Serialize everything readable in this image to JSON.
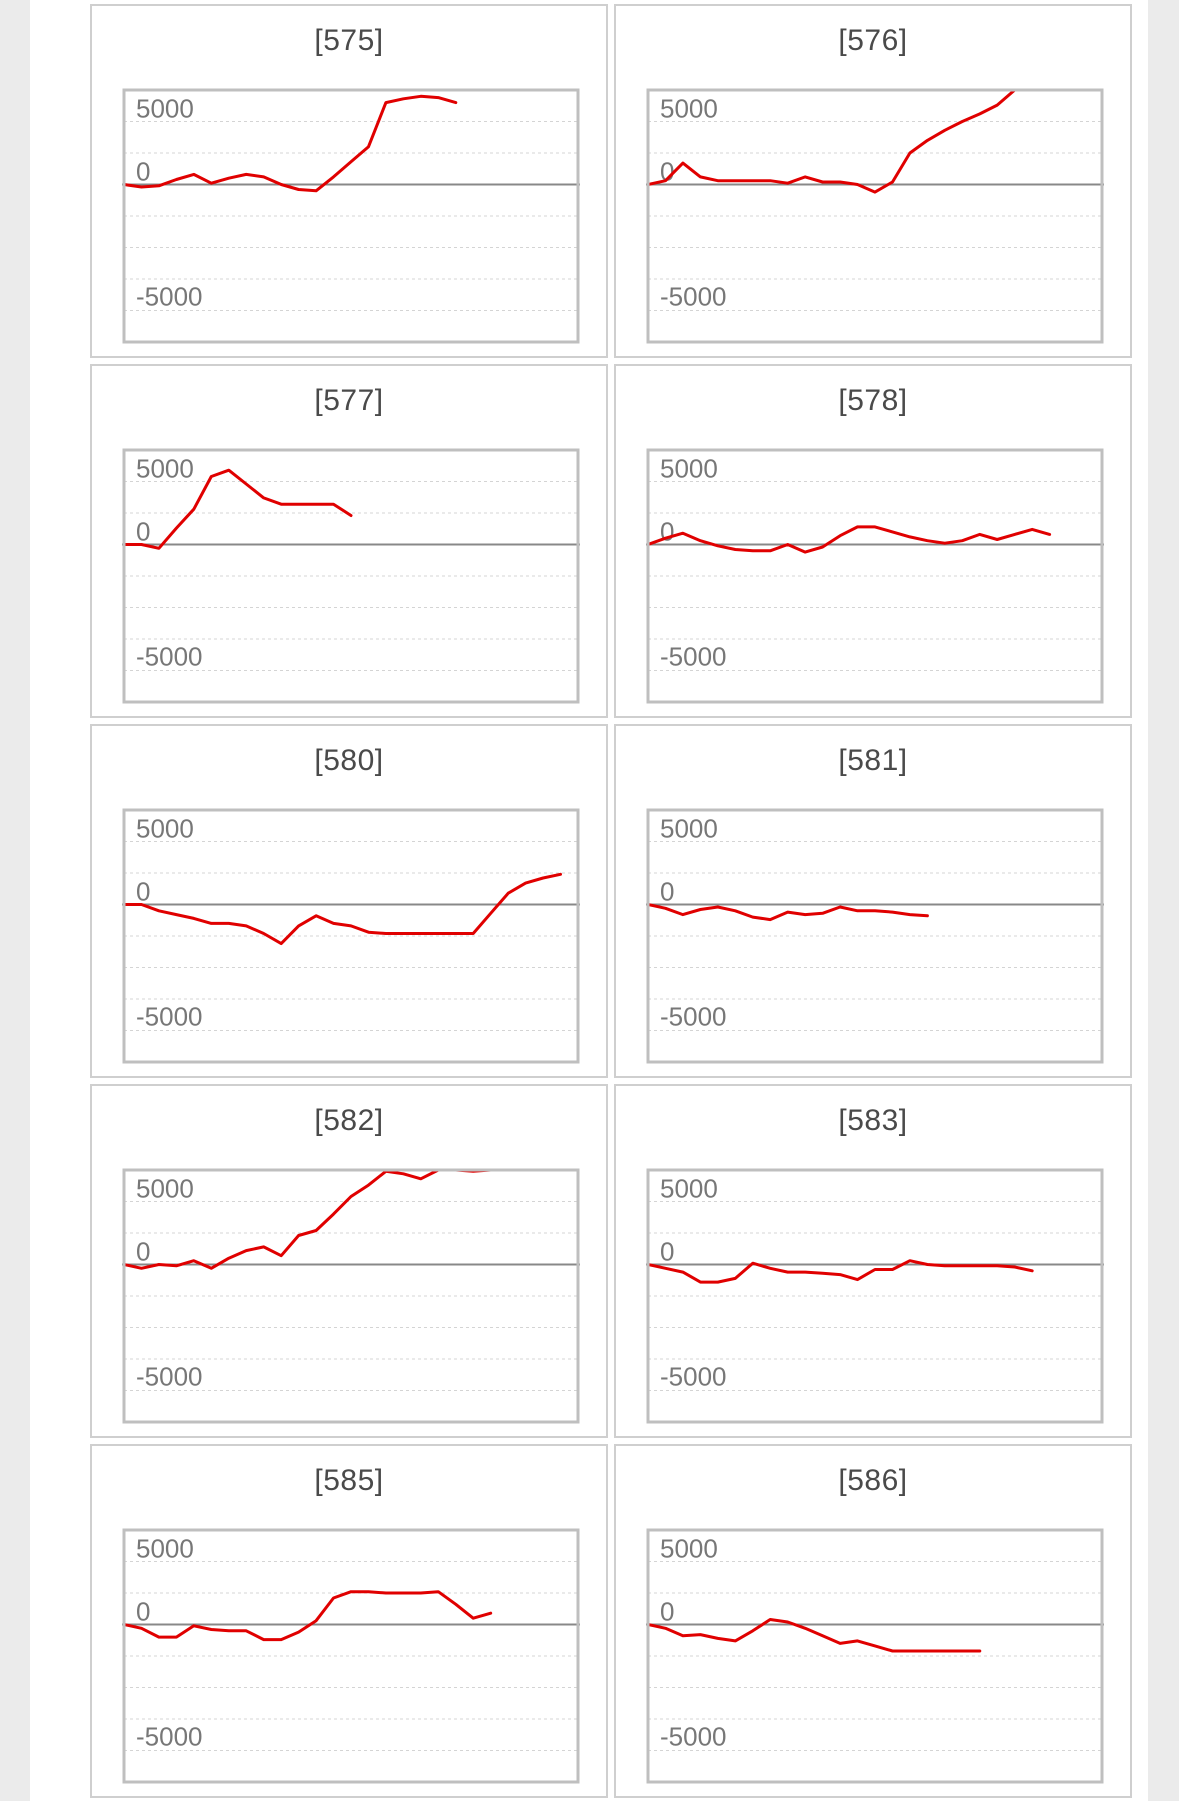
{
  "chart_data": [
    {
      "type": "line",
      "title": "[575]",
      "y_tick_labels": [
        "5000",
        "0",
        "-5000"
      ],
      "x": [
        0,
        1,
        2,
        3,
        4,
        5,
        6,
        7,
        8,
        9,
        10,
        11,
        12,
        13,
        14,
        15,
        16,
        17,
        18,
        19
      ],
      "values": [
        0,
        -200,
        -100,
        400,
        800,
        100,
        500,
        800,
        600,
        0,
        -400,
        -500,
        600,
        1800,
        3000,
        6500,
        6800,
        7000,
        6900,
        6500
      ]
    },
    {
      "type": "line",
      "title": "[576]",
      "y_tick_labels": [
        "5000",
        "0",
        "-5000"
      ],
      "x": [
        0,
        1,
        2,
        3,
        4,
        5,
        6,
        7,
        8,
        9,
        10,
        11,
        12,
        13,
        14,
        15,
        16,
        17,
        18,
        19,
        20,
        21,
        22,
        23,
        24,
        25,
        26,
        27
      ],
      "values": [
        0,
        300,
        1700,
        600,
        300,
        300,
        300,
        300,
        100,
        600,
        200,
        200,
        0,
        -600,
        200,
        2500,
        3500,
        4300,
        5000,
        5600,
        6300,
        7500,
        7500,
        7500,
        7500,
        7500,
        7500,
        7500
      ]
    },
    {
      "type": "line",
      "title": "[577]",
      "y_tick_labels": [
        "5000",
        "0",
        "-5000"
      ],
      "x": [
        0,
        1,
        2,
        3,
        4,
        5,
        6,
        7,
        8,
        9,
        10,
        11,
        12,
        13
      ],
      "values": [
        0,
        0,
        -300,
        1300,
        2800,
        5400,
        5900,
        4800,
        3700,
        3200,
        3200,
        3200,
        3200,
        2300
      ]
    },
    {
      "type": "line",
      "title": "[578]",
      "y_tick_labels": [
        "5000",
        "0",
        "-5000"
      ],
      "x": [
        0,
        1,
        2,
        3,
        4,
        5,
        6,
        7,
        8,
        9,
        10,
        11,
        12,
        13,
        14,
        15,
        16,
        17,
        18,
        19,
        20,
        21,
        22,
        23
      ],
      "values": [
        0,
        500,
        900,
        300,
        -100,
        -400,
        -500,
        -500,
        0,
        -600,
        -200,
        700,
        1400,
        1400,
        1000,
        600,
        300,
        100,
        300,
        800,
        400,
        800,
        1200,
        800
      ]
    },
    {
      "type": "line",
      "title": "[580]",
      "y_tick_labels": [
        "5000",
        "0",
        "-5000"
      ],
      "x": [
        0,
        1,
        2,
        3,
        4,
        5,
        6,
        7,
        8,
        9,
        10,
        11,
        12,
        13,
        14,
        15,
        16,
        17,
        18,
        19,
        20,
        21,
        22,
        23,
        24,
        25
      ],
      "values": [
        0,
        0,
        -500,
        -800,
        -1100,
        -1500,
        -1500,
        -1700,
        -2300,
        -3100,
        -1700,
        -900,
        -1500,
        -1700,
        -2200,
        -2300,
        -2300,
        -2300,
        -2300,
        -2300,
        -2300,
        -700,
        900,
        1700,
        2100,
        2400
      ]
    },
    {
      "type": "line",
      "title": "[581]",
      "y_tick_labels": [
        "5000",
        "0",
        "-5000"
      ],
      "x": [
        0,
        1,
        2,
        3,
        4,
        5,
        6,
        7,
        8,
        9,
        10,
        11,
        12,
        13,
        14,
        15,
        16
      ],
      "values": [
        0,
        -300,
        -800,
        -400,
        -200,
        -500,
        -1000,
        -1200,
        -600,
        -800,
        -700,
        -200,
        -500,
        -500,
        -600,
        -800,
        -900
      ]
    },
    {
      "type": "line",
      "title": "[582]",
      "y_tick_labels": [
        "5000",
        "0",
        "-5000"
      ],
      "x": [
        0,
        1,
        2,
        3,
        4,
        5,
        6,
        7,
        8,
        9,
        10,
        11,
        12,
        13,
        14,
        15,
        16,
        17,
        18,
        19,
        20,
        21,
        22,
        23,
        24,
        25,
        26
      ],
      "values": [
        0,
        -300,
        0,
        -100,
        300,
        -300,
        500,
        1100,
        1400,
        700,
        2300,
        2700,
        4000,
        5400,
        6300,
        7400,
        7200,
        6800,
        7500,
        7500,
        7400,
        7500,
        7500,
        7500,
        7500,
        7500,
        7500
      ]
    },
    {
      "type": "line",
      "title": "[583]",
      "y_tick_labels": [
        "5000",
        "0",
        "-5000"
      ],
      "x": [
        0,
        1,
        2,
        3,
        4,
        5,
        6,
        7,
        8,
        9,
        10,
        11,
        12,
        13,
        14,
        15,
        16,
        17,
        18,
        19,
        20,
        21,
        22
      ],
      "values": [
        0,
        -300,
        -600,
        -1400,
        -1400,
        -1100,
        100,
        -300,
        -600,
        -600,
        -700,
        -800,
        -1200,
        -400,
        -400,
        300,
        0,
        -100,
        -100,
        -100,
        -100,
        -200,
        -500
      ]
    },
    {
      "type": "line",
      "title": "[585]",
      "y_tick_labels": [
        "5000",
        "0",
        "-5000"
      ],
      "x": [
        0,
        1,
        2,
        3,
        4,
        5,
        6,
        7,
        8,
        9,
        10,
        11,
        12,
        13,
        14,
        15,
        16,
        17,
        18,
        19,
        20,
        21
      ],
      "values": [
        0,
        -300,
        -1000,
        -1000,
        -100,
        -400,
        -500,
        -500,
        -1200,
        -1200,
        -600,
        300,
        2100,
        2600,
        2600,
        2500,
        2500,
        2500,
        2600,
        1600,
        500,
        900
      ]
    },
    {
      "type": "line",
      "title": "[586]",
      "y_tick_labels": [
        "5000",
        "0",
        "-5000"
      ],
      "x": [
        0,
        1,
        2,
        3,
        4,
        5,
        6,
        7,
        8,
        9,
        10,
        11,
        12,
        13,
        14,
        15,
        16,
        17,
        18,
        19
      ],
      "values": [
        0,
        -300,
        -900,
        -800,
        -1100,
        -1300,
        -500,
        400,
        200,
        -300,
        -900,
        -1500,
        -1300,
        -1700,
        -2100,
        -2100,
        -2100,
        -2100,
        -2100,
        -2100
      ]
    }
  ],
  "colors": {
    "line": "#e00000",
    "zero_line": "#888888",
    "grid": "#d4d4d4",
    "frame": "#bfbfbf",
    "tick_text": "#777777"
  }
}
